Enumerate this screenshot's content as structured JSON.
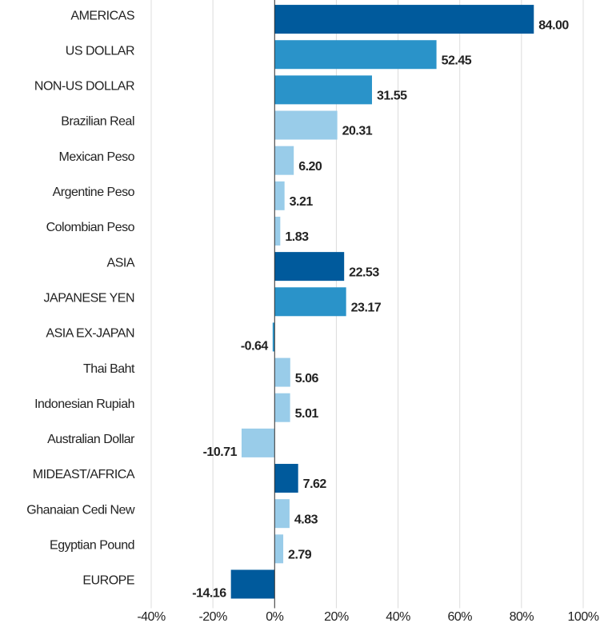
{
  "chart_data": {
    "type": "bar",
    "orientation": "horizontal",
    "categories": [
      "AMERICAS",
      "US DOLLAR",
      "NON-US DOLLAR",
      "Brazilian Real",
      "Mexican Peso",
      "Argentine Peso",
      "Colombian Peso",
      "ASIA",
      "JAPANESE YEN",
      "ASIA EX-JAPAN",
      "Thai Baht",
      "Indonesian Rupiah",
      "Australian Dollar",
      "MIDEAST/AFRICA",
      "Ghanaian Cedi New",
      "Egyptian Pound",
      "EUROPE"
    ],
    "values": [
      84.0,
      52.45,
      31.55,
      20.31,
      6.2,
      3.21,
      1.83,
      22.53,
      23.17,
      -0.64,
      5.06,
      5.01,
      -10.71,
      7.62,
      4.83,
      2.79,
      -14.16
    ],
    "value_labels": [
      "84.00",
      "52.45",
      "31.55",
      "20.31",
      "6.20",
      "3.21",
      "1.83",
      "22.53",
      "23.17",
      "-0.64",
      "5.06",
      "5.01",
      "-10.71",
      "7.62",
      "4.83",
      "2.79",
      "-14.16"
    ],
    "colors": [
      "#005a9c",
      "#2a93c9",
      "#2a93c9",
      "#99cce9",
      "#99cce9",
      "#99cce9",
      "#99cce9",
      "#005a9c",
      "#2a93c9",
      "#2a93c9",
      "#99cce9",
      "#99cce9",
      "#99cce9",
      "#005a9c",
      "#99cce9",
      "#99cce9",
      "#005a9c"
    ],
    "xlim": [
      -40,
      100
    ],
    "xticks": [
      {
        "value": -40,
        "label": "-40%"
      },
      {
        "value": -20,
        "label": "-20%"
      },
      {
        "value": 0,
        "label": "0%"
      },
      {
        "value": 20,
        "label": "20%"
      },
      {
        "value": 40,
        "label": "40%"
      },
      {
        "value": 60,
        "label": "60%"
      },
      {
        "value": 80,
        "label": "80%"
      },
      {
        "value": 100,
        "label": "100%"
      }
    ],
    "grid": true
  }
}
